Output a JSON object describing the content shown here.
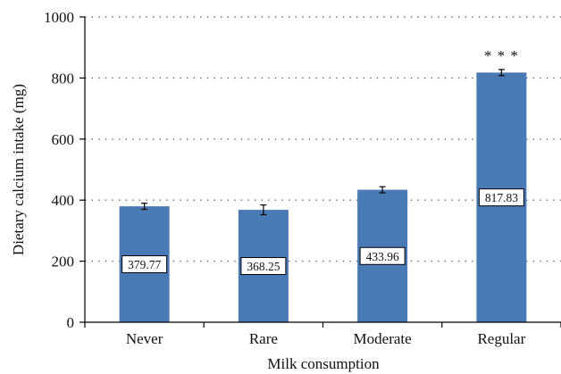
{
  "chart_data": {
    "type": "bar",
    "title": "",
    "xlabel": "Milk consumption",
    "ylabel": "Dietary calcium intake (mg)",
    "categories": [
      "Never",
      "Rare",
      "Moderate",
      "Regular"
    ],
    "values": [
      379.77,
      368.25,
      433.96,
      817.83
    ],
    "data_labels": [
      "379.77",
      "368.25",
      "433.96",
      "817.83"
    ],
    "errors": [
      10,
      16,
      10,
      10
    ],
    "annotations": [
      {
        "category": "Regular",
        "text": "* * *"
      }
    ],
    "ylim": [
      0,
      1000
    ],
    "yticks": [
      0,
      200,
      400,
      600,
      800,
      1000
    ],
    "ytick_labels": [
      "0",
      "200",
      "400",
      "600",
      "800",
      "1000"
    ],
    "grid": "horizontal dotted",
    "legend": "none",
    "colors": {
      "bar": "#4a7ab5",
      "axis": "#000000",
      "grid": "#666666",
      "label_box_fill": "#ffffff",
      "label_box_stroke": "#000000"
    }
  }
}
